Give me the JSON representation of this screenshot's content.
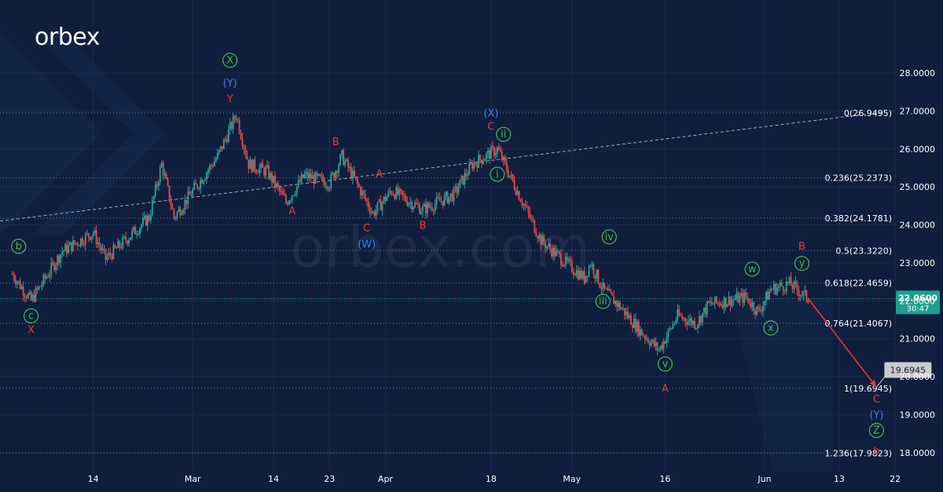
{
  "brand": {
    "logo_text": "orbex",
    "watermark_text": "orbex.com"
  },
  "colors": {
    "background": "#0f1e3d",
    "grid": "#1c2b4a",
    "up_candle": "#26a69a",
    "down_candle": "#e84b4b",
    "axis_text": "#ffffff",
    "wave_red": "#e53935",
    "wave_blue": "#3b82f6",
    "wave_green": "#4caf50",
    "price_badge": "#1f9e8f",
    "target_badge": "#c9ccd3",
    "projection_arrow": "#e53935"
  },
  "chart_data": {
    "type": "candlestick",
    "title": "",
    "grid": true,
    "ylim": [
      17.6,
      28.2
    ],
    "x_range_days": [
      -2,
      132
    ],
    "y_ticks": [
      "28.0000",
      "27.0000",
      "26.0000",
      "25.0000",
      "24.0000",
      "23.0000",
      "22.0000",
      "21.0000",
      "20.0000",
      "19.0000",
      "18.0000"
    ],
    "x_ticks": [
      {
        "label": "14",
        "day": 13
      },
      {
        "label": "Mar",
        "day": 29
      },
      {
        "label": "14",
        "day": 42
      },
      {
        "label": "23",
        "day": 51
      },
      {
        "label": "Apr",
        "day": 60
      },
      {
        "label": "18",
        "day": 77
      },
      {
        "label": "May",
        "day": 90
      },
      {
        "label": "16",
        "day": 105
      },
      {
        "label": "Jun",
        "day": 121
      },
      {
        "label": "13",
        "day": 133
      },
      {
        "label": "22",
        "day": 142
      }
    ],
    "price_path": [
      {
        "day": 0,
        "price": 22.7
      },
      {
        "day": 3,
        "price": 22.0
      },
      {
        "day": 8,
        "price": 23.3
      },
      {
        "day": 13,
        "price": 23.8
      },
      {
        "day": 15,
        "price": 23.1
      },
      {
        "day": 22,
        "price": 24.2
      },
      {
        "day": 24,
        "price": 25.6
      },
      {
        "day": 26,
        "price": 24.2
      },
      {
        "day": 33,
        "price": 25.8
      },
      {
        "day": 36,
        "price": 26.9
      },
      {
        "day": 38,
        "price": 25.6
      },
      {
        "day": 41,
        "price": 25.4
      },
      {
        "day": 44,
        "price": 24.6
      },
      {
        "day": 47,
        "price": 25.3
      },
      {
        "day": 51,
        "price": 25.1
      },
      {
        "day": 53,
        "price": 25.8
      },
      {
        "day": 58,
        "price": 24.3
      },
      {
        "day": 61,
        "price": 24.9
      },
      {
        "day": 66,
        "price": 24.4
      },
      {
        "day": 71,
        "price": 24.8
      },
      {
        "day": 74,
        "price": 25.6
      },
      {
        "day": 78,
        "price": 26.0
      },
      {
        "day": 80,
        "price": 25.3
      },
      {
        "day": 85,
        "price": 23.6
      },
      {
        "day": 89,
        "price": 23.0
      },
      {
        "day": 92,
        "price": 22.6
      },
      {
        "day": 93,
        "price": 23.0
      },
      {
        "day": 95,
        "price": 22.3
      },
      {
        "day": 98,
        "price": 21.8
      },
      {
        "day": 101,
        "price": 21.2
      },
      {
        "day": 104,
        "price": 20.7
      },
      {
        "day": 107,
        "price": 21.6
      },
      {
        "day": 110,
        "price": 21.4
      },
      {
        "day": 112,
        "price": 21.9
      },
      {
        "day": 115,
        "price": 22.0
      },
      {
        "day": 118,
        "price": 22.1
      },
      {
        "day": 120,
        "price": 21.7
      },
      {
        "day": 122,
        "price": 22.3
      },
      {
        "day": 125,
        "price": 22.45
      },
      {
        "day": 128,
        "price": 22.06
      }
    ],
    "trendline": {
      "start": {
        "day": -2,
        "price": 24.1
      },
      "end": {
        "day": 140,
        "price": 26.97
      }
    },
    "fib_levels": [
      {
        "label": "0(26.9495)",
        "price": 26.9495
      },
      {
        "label": "0.236(25.2373)",
        "price": 25.2373
      },
      {
        "label": "0.382(24.1781)",
        "price": 24.1781
      },
      {
        "label": "0.5(23.3220)",
        "price": 23.322
      },
      {
        "label": "0.618(22.4659)",
        "price": 22.4659
      },
      {
        "label": "0.764(21.4067)",
        "price": 21.4067
      },
      {
        "label": "1(19.6945)",
        "price": 19.6945
      },
      {
        "label": "1.236(17.9823)",
        "price": 17.9823
      }
    ],
    "current_price": {
      "value": "22.0600",
      "timer": "30:47",
      "price": 22.06
    },
    "projection": {
      "from": {
        "day": 128,
        "price": 22.06
      },
      "to": {
        "day": 139,
        "price": 19.72
      },
      "label": "19.6945"
    },
    "wave_labels": [
      {
        "text": "b",
        "day": 1,
        "price": 23.35,
        "color": "green",
        "circle": true
      },
      {
        "text": "c",
        "day": 3,
        "price": 21.52,
        "color": "green",
        "circle": true
      },
      {
        "text": "X",
        "day": 3,
        "price": 21.15,
        "color": "red",
        "circle": false
      },
      {
        "text": "X",
        "day": 35,
        "price": 28.25,
        "color": "green",
        "circle": true
      },
      {
        "text": "(Y)",
        "day": 35,
        "price": 27.65,
        "color": "blue",
        "circle": false
      },
      {
        "text": "Y",
        "day": 35,
        "price": 27.22,
        "color": "red",
        "circle": false
      },
      {
        "text": "A",
        "day": 45,
        "price": 24.28,
        "color": "red",
        "circle": false
      },
      {
        "text": "B",
        "day": 52,
        "price": 26.1,
        "color": "red",
        "circle": false
      },
      {
        "text": "A",
        "day": 59,
        "price": 25.25,
        "color": "red",
        "circle": false
      },
      {
        "text": "C",
        "day": 57,
        "price": 23.82,
        "color": "red",
        "circle": false
      },
      {
        "text": "(W)",
        "day": 57,
        "price": 23.4,
        "color": "blue",
        "circle": false
      },
      {
        "text": "B",
        "day": 66,
        "price": 23.9,
        "color": "red",
        "circle": false
      },
      {
        "text": "(X)",
        "day": 77,
        "price": 26.85,
        "color": "blue",
        "circle": false
      },
      {
        "text": "C",
        "day": 77,
        "price": 26.5,
        "color": "red",
        "circle": false
      },
      {
        "text": "ii",
        "day": 79,
        "price": 26.3,
        "color": "green",
        "circle": true
      },
      {
        "text": "i",
        "day": 78,
        "price": 25.25,
        "color": "green",
        "circle": true
      },
      {
        "text": "iv",
        "day": 96,
        "price": 23.6,
        "color": "green",
        "circle": true
      },
      {
        "text": "iii",
        "day": 95,
        "price": 21.9,
        "color": "green",
        "circle": true
      },
      {
        "text": "v",
        "day": 105,
        "price": 20.25,
        "color": "green",
        "circle": true
      },
      {
        "text": "A",
        "day": 105,
        "price": 19.6,
        "color": "red",
        "circle": false
      },
      {
        "text": "w",
        "day": 119,
        "price": 22.75,
        "color": "green",
        "circle": true
      },
      {
        "text": "x",
        "day": 122,
        "price": 21.2,
        "color": "green",
        "circle": true
      },
      {
        "text": "B",
        "day": 127,
        "price": 23.35,
        "color": "red",
        "circle": false
      },
      {
        "text": "y",
        "day": 127,
        "price": 22.9,
        "color": "green",
        "circle": true
      },
      {
        "text": "C",
        "day": 139,
        "price": 19.32,
        "color": "red",
        "circle": false
      },
      {
        "text": "(Y)",
        "day": 139,
        "price": 18.9,
        "color": "blue",
        "circle": false
      },
      {
        "text": "Z",
        "day": 139,
        "price": 18.5,
        "color": "green",
        "circle": true
      },
      {
        "text": "b",
        "day": 139,
        "price": 17.95,
        "color": "red",
        "circle": false
      }
    ]
  }
}
